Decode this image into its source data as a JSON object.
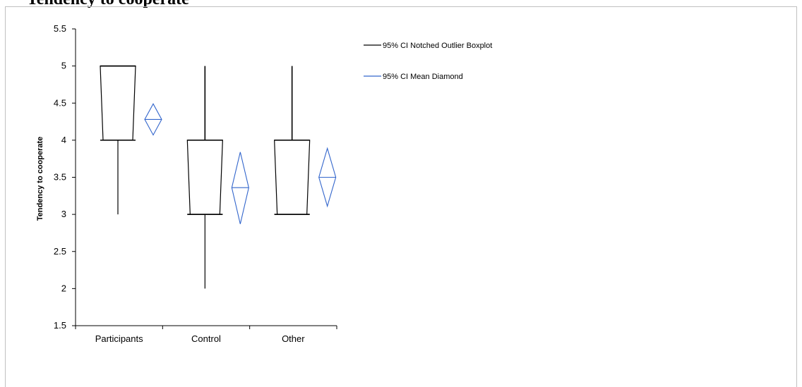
{
  "title": "Tendency to cooperate",
  "chart_data": {
    "type": "box",
    "ylabel": "Tendency to cooperate",
    "xlabel": "",
    "ylim": [
      1.5,
      5.5
    ],
    "yticks": [
      "1.5",
      "2",
      "2.5",
      "3",
      "3.5",
      "4",
      "4.5",
      "5",
      "5.5"
    ],
    "ytick_values": [
      1.5,
      2,
      2.5,
      3,
      3.5,
      4,
      4.5,
      5,
      5.5
    ],
    "categories": [
      "Participants",
      "Control",
      "Other"
    ],
    "boxplots": [
      {
        "category": "Participants",
        "whisker_low": 3,
        "q1": 4,
        "median": 5,
        "q3": 5,
        "whisker_high": 5,
        "notch_low": 4,
        "notch_high": 5
      },
      {
        "category": "Control",
        "whisker_low": 2,
        "q1": 3,
        "median": 3,
        "q3": 4,
        "whisker_high": 5,
        "notch_low": 3,
        "notch_high": 4
      },
      {
        "category": "Other",
        "whisker_low": 3,
        "q1": 3,
        "median": 3,
        "q3": 4,
        "whisker_high": 5,
        "notch_low": 3,
        "notch_high": 4
      }
    ],
    "mean_diamonds": [
      {
        "category": "Participants",
        "mean": 4.28,
        "ci_low": 4.07,
        "ci_high": 4.49
      },
      {
        "category": "Control",
        "mean": 3.36,
        "ci_low": 2.87,
        "ci_high": 3.84
      },
      {
        "category": "Other",
        "mean": 3.5,
        "ci_low": 3.11,
        "ci_high": 3.89
      }
    ],
    "legend": [
      {
        "label": "95% CI Notched Outlier Boxplot",
        "color": "#000000"
      },
      {
        "label": "95% CI Mean Diamond",
        "color": "#3366cc"
      }
    ],
    "legend_position": "top-right",
    "grid": false
  }
}
